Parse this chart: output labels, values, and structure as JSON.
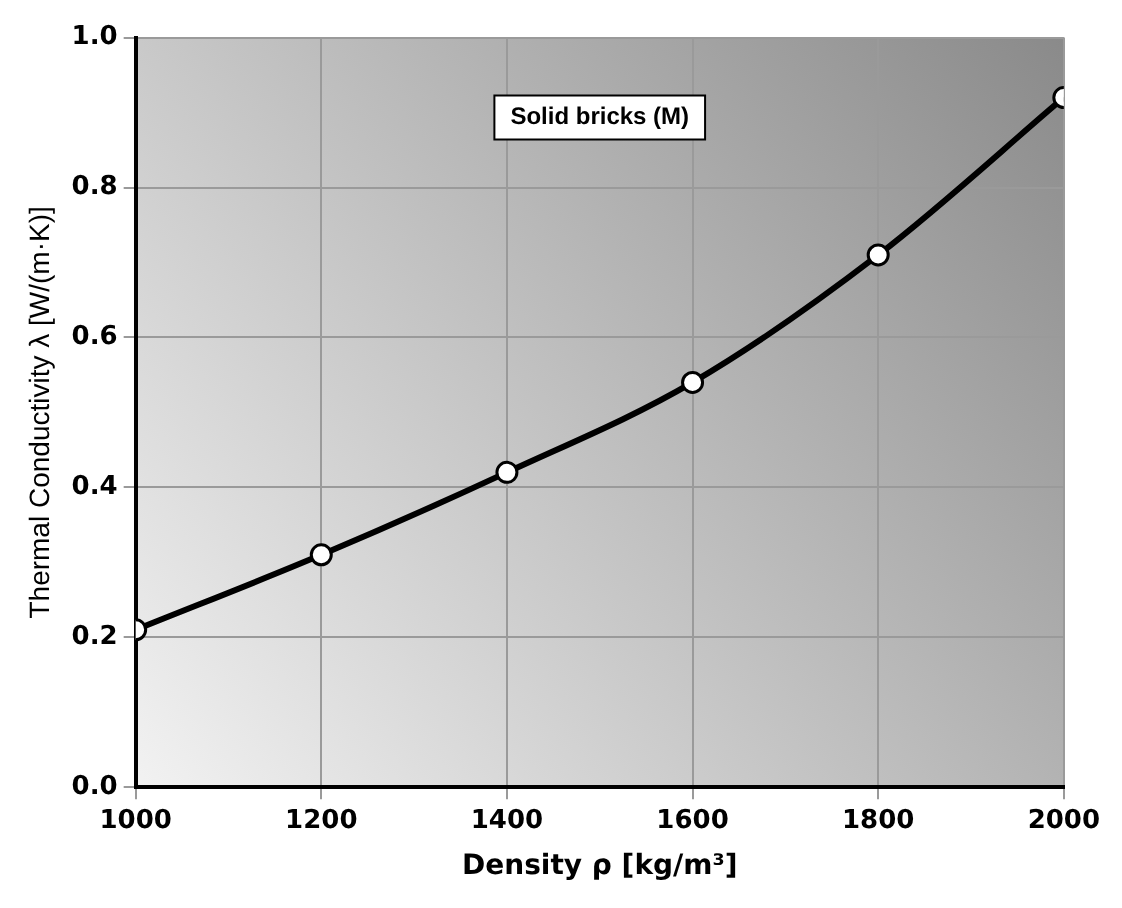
{
  "chart_data": {
    "type": "line",
    "xlabel": "Density ρ [kg/m³]",
    "ylabel": "Thermal Conductivity λ [W/(m·K)]",
    "x": [
      1000,
      1200,
      1400,
      1600,
      1800,
      2000
    ],
    "series": [
      {
        "color": "#000000",
        "values": [
          0.21,
          0.31,
          0.42,
          0.54,
          0.71,
          0.92
        ]
      }
    ],
    "xlim": [
      1000,
      2000
    ],
    "xticks": [
      1000,
      1200,
      1400,
      1600,
      1800,
      2000
    ],
    "ylim": [
      0,
      1
    ],
    "yticks": [
      {
        "value": 0,
        "label": "0.0"
      },
      {
        "value": 0.2,
        "label": "0.2"
      },
      {
        "value": 0.4,
        "label": "0.4"
      },
      {
        "value": 0.6,
        "label": "0.6"
      },
      {
        "value": 0.8,
        "label": "0.8"
      },
      {
        "value": 1,
        "label": "1.0"
      }
    ],
    "annotations": [
      "Solid bricks (M)"
    ],
    "grid": true,
    "legend": false,
    "marker": "circle",
    "line_style": "solid"
  }
}
